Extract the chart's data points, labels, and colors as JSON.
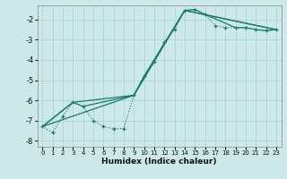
{
  "xlabel": "Humidex (Indice chaleur)",
  "background_color": "#cce8e8",
  "grid_color": "#b0d8d8",
  "line_color": "#1a7a6e",
  "xlim": [
    -0.5,
    23.5
  ],
  "ylim": [
    -8.3,
    -1.3
  ],
  "yticks": [
    -8,
    -7,
    -6,
    -5,
    -4,
    -3,
    -2
  ],
  "xticks": [
    0,
    1,
    2,
    3,
    4,
    5,
    6,
    7,
    8,
    9,
    10,
    11,
    12,
    13,
    14,
    15,
    16,
    17,
    18,
    19,
    20,
    21,
    22,
    23
  ],
  "curve_x": [
    0,
    1,
    2,
    3,
    4,
    5,
    6,
    7,
    8,
    9,
    10,
    11,
    12,
    13,
    14,
    15,
    16,
    17,
    18,
    19,
    20,
    21,
    22,
    23
  ],
  "curve_y": [
    -7.3,
    -7.6,
    -6.8,
    -6.1,
    -6.3,
    -7.0,
    -7.3,
    -7.4,
    -7.4,
    -5.75,
    -4.8,
    -4.1,
    -3.1,
    -2.5,
    -1.55,
    -1.5,
    -1.75,
    -2.3,
    -2.4,
    -2.4,
    -2.4,
    -2.5,
    -2.55,
    -2.5
  ],
  "line1_x": [
    0,
    9,
    14,
    23
  ],
  "line1_y": [
    -7.3,
    -5.75,
    -1.55,
    -2.5
  ],
  "line2_x": [
    0,
    3,
    9,
    14,
    23
  ],
  "line2_y": [
    -7.3,
    -6.1,
    -5.75,
    -1.55,
    -2.5
  ],
  "line3_x": [
    0,
    3,
    4,
    9,
    10,
    14,
    15,
    16,
    19,
    20,
    21,
    22,
    23
  ],
  "line3_y": [
    -7.3,
    -6.1,
    -6.3,
    -5.75,
    -4.8,
    -1.55,
    -1.5,
    -1.75,
    -2.4,
    -2.4,
    -2.5,
    -2.55,
    -2.5
  ]
}
